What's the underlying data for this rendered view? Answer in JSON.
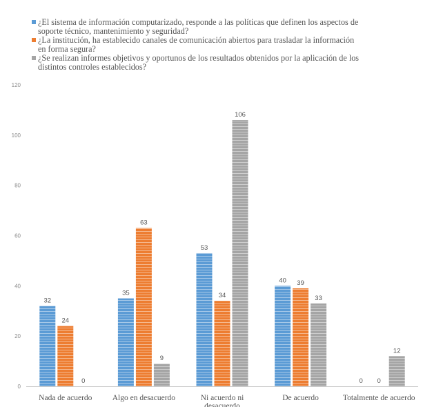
{
  "chart_data": {
    "type": "bar",
    "categories": [
      "Nada de acuerdo",
      "Algo en desacuerdo",
      "Ni acuerdo ni desacuerdo",
      "De acuerdo",
      "Totalmente de acuerdo"
    ],
    "category_lines": [
      [
        "Nada de acuerdo"
      ],
      [
        "Algo en desacuerdo"
      ],
      [
        "Ni acuerdo ni",
        "desacuerdo"
      ],
      [
        "De acuerdo"
      ],
      [
        "Totalmente de acuerdo"
      ]
    ],
    "series": [
      {
        "name": "¿El sistema de información computarizado, responde a las políticas que definen los aspectos de soporte técnico, mantenimiento y seguridad?",
        "name_lines": [
          "¿El sistema de información computarizado, responde a las políticas que definen los aspectos de",
          "soporte técnico, mantenimiento y seguridad?"
        ],
        "color": "#5b9bd5",
        "values": [
          32,
          35,
          53,
          40,
          0
        ]
      },
      {
        "name": "¿La institución, ha establecido canales de comunicación abiertos para trasladar la información en forma segura?",
        "name_lines": [
          "¿La institución, ha establecido canales de comunicación abiertos para trasladar la información",
          "en forma segura?"
        ],
        "color": "#ed7d31",
        "values": [
          24,
          63,
          34,
          39,
          0
        ]
      },
      {
        "name": "¿Se realizan informes objetivos y oportunos de los resultados obtenidos por la aplicación de los distintos controles establecidos?",
        "name_lines": [
          "¿Se realizan informes objetivos y oportunos de los resultados obtenidos por la aplicación de los",
          "distintos controles establecidos?"
        ],
        "color": "#a5a5a5",
        "values": [
          0,
          9,
          106,
          33,
          12
        ]
      }
    ],
    "yticks": [
      "0",
      "20",
      "40",
      "60",
      "80",
      "100",
      "120"
    ],
    "ylim": [
      0,
      120
    ],
    "legend_position": "top",
    "grid": false
  }
}
